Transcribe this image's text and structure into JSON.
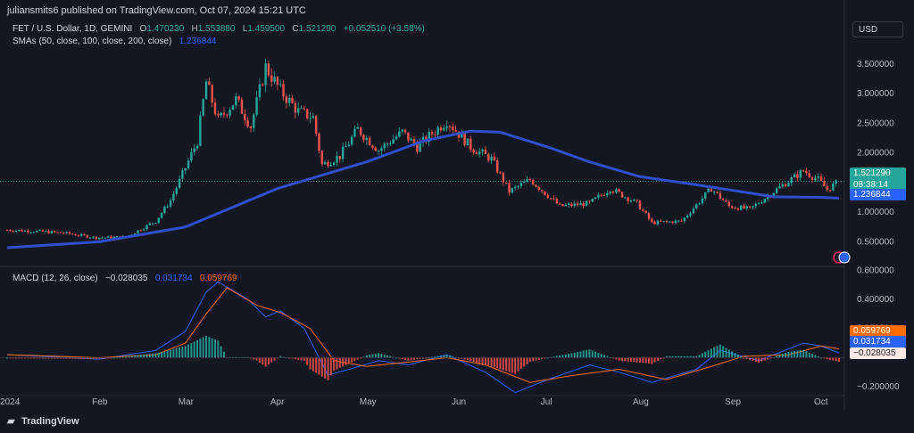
{
  "header": {
    "publisher_line": "juliansmits6 published on TradingView.com, Oct 07, 2024 15:21 UTC"
  },
  "legend": {
    "symbol": "FET / U.S. Dollar, 1D, GEMINI",
    "o_label": "O",
    "o_value": "1.470230",
    "h_label": "H",
    "h_value": "1.553880",
    "l_label": "L",
    "l_value": "1.459500",
    "c_label": "C",
    "c_value": "1.521290",
    "change": "+0.052510 (+3.58%)",
    "sma_label": "SMAs (50, close, 100, close, 200, close)",
    "sma_value": "1.236844",
    "macd_label": "MACD (12, 26, close)",
    "macd_hist": "−0.028035",
    "macd_line": "0.031734",
    "macd_signal": "0.059769"
  },
  "currency_button": "USD",
  "price_tags": {
    "last": "1.521290",
    "countdown": "08:38:14",
    "sma": "1.236844",
    "macd_signal": "0.059769",
    "macd_line": "0.031734",
    "macd_hist": "−0.028035"
  },
  "footer": {
    "brand": "TradingView"
  },
  "colors": {
    "bg": "#131722",
    "up": "#26a69a",
    "down": "#ef5350",
    "sma": "#2e4fc9",
    "macd_line": "#2962ff",
    "signal": "#ff6d00"
  },
  "chart_data": [
    {
      "type": "candlestick",
      "title": "FET / U.S. Dollar, 1D, GEMINI",
      "x_tick_labels": [
        "2024",
        "Feb",
        "Mar",
        "Apr",
        "May",
        "Jun",
        "Jul",
        "Aug",
        "Sep",
        "Oct"
      ],
      "y_tick_labels": [
        "0.500000",
        "1.000000",
        "1.500000",
        "2.000000",
        "2.500000",
        "3.000000",
        "3.500000"
      ],
      "ylim": [
        0.1,
        3.8
      ],
      "close_series": [
        {
          "date": "2024-01-01",
          "close": 0.7
        },
        {
          "date": "2024-01-10",
          "close": 0.68
        },
        {
          "date": "2024-01-20",
          "close": 0.65
        },
        {
          "date": "2024-01-31",
          "close": 0.57
        },
        {
          "date": "2024-02-10",
          "close": 0.58
        },
        {
          "date": "2024-02-20",
          "close": 0.85
        },
        {
          "date": "2024-02-25",
          "close": 1.2
        },
        {
          "date": "2024-03-01",
          "close": 1.75
        },
        {
          "date": "2024-03-05",
          "close": 2.2
        },
        {
          "date": "2024-03-08",
          "close": 3.2
        },
        {
          "date": "2024-03-12",
          "close": 2.55
        },
        {
          "date": "2024-03-18",
          "close": 2.9
        },
        {
          "date": "2024-03-23",
          "close": 2.45
        },
        {
          "date": "2024-03-28",
          "close": 3.45
        },
        {
          "date": "2024-04-02",
          "close": 3.05
        },
        {
          "date": "2024-04-08",
          "close": 2.7
        },
        {
          "date": "2024-04-13",
          "close": 2.6
        },
        {
          "date": "2024-04-16",
          "close": 1.8
        },
        {
          "date": "2024-04-22",
          "close": 1.95
        },
        {
          "date": "2024-04-28",
          "close": 2.4
        },
        {
          "date": "2024-05-05",
          "close": 2.05
        },
        {
          "date": "2024-05-13",
          "close": 2.35
        },
        {
          "date": "2024-05-18",
          "close": 2.1
        },
        {
          "date": "2024-05-28",
          "close": 2.55
        },
        {
          "date": "2024-06-05",
          "close": 2.1
        },
        {
          "date": "2024-06-12",
          "close": 1.9
        },
        {
          "date": "2024-06-18",
          "close": 1.35
        },
        {
          "date": "2024-06-25",
          "close": 1.55
        },
        {
          "date": "2024-07-05",
          "close": 1.1
        },
        {
          "date": "2024-07-15",
          "close": 1.15
        },
        {
          "date": "2024-07-22",
          "close": 1.4
        },
        {
          "date": "2024-07-31",
          "close": 1.15
        },
        {
          "date": "2024-08-05",
          "close": 0.82
        },
        {
          "date": "2024-08-15",
          "close": 0.85
        },
        {
          "date": "2024-08-25",
          "close": 1.4
        },
        {
          "date": "2024-08-31",
          "close": 1.1
        },
        {
          "date": "2024-09-07",
          "close": 1.05
        },
        {
          "date": "2024-09-15",
          "close": 1.35
        },
        {
          "date": "2024-09-25",
          "close": 1.7
        },
        {
          "date": "2024-09-30",
          "close": 1.55
        },
        {
          "date": "2024-10-03",
          "close": 1.38
        },
        {
          "date": "2024-10-07",
          "close": 1.52
        }
      ],
      "sma_series": [
        {
          "date": "2024-01-01",
          "value": 0.4
        },
        {
          "date": "2024-02-01",
          "value": 0.5
        },
        {
          "date": "2024-03-01",
          "value": 0.75
        },
        {
          "date": "2024-04-01",
          "value": 1.4
        },
        {
          "date": "2024-05-01",
          "value": 1.85
        },
        {
          "date": "2024-05-20",
          "value": 2.2
        },
        {
          "date": "2024-06-05",
          "value": 2.37
        },
        {
          "date": "2024-06-15",
          "value": 2.35
        },
        {
          "date": "2024-07-01",
          "value": 2.1
        },
        {
          "date": "2024-07-15",
          "value": 1.85
        },
        {
          "date": "2024-08-01",
          "value": 1.6
        },
        {
          "date": "2024-08-15",
          "value": 1.5
        },
        {
          "date": "2024-09-01",
          "value": 1.37
        },
        {
          "date": "2024-09-15",
          "value": 1.26
        },
        {
          "date": "2024-10-01",
          "value": 1.25
        },
        {
          "date": "2024-10-07",
          "value": 1.236844
        }
      ]
    },
    {
      "type": "line",
      "title": "MACD (12, 26, close)",
      "y_tick_labels": [
        "−0.200000",
        "0.200000",
        "0.400000",
        "0.600000"
      ],
      "ylim": [
        -0.26,
        0.62
      ],
      "series": [
        {
          "name": "MACD",
          "points": [
            {
              "date": "2024-01-01",
              "value": 0.02
            },
            {
              "date": "2024-02-01",
              "value": -0.01
            },
            {
              "date": "2024-02-20",
              "value": 0.05
            },
            {
              "date": "2024-03-01",
              "value": 0.18
            },
            {
              "date": "2024-03-08",
              "value": 0.45
            },
            {
              "date": "2024-03-12",
              "value": 0.52
            },
            {
              "date": "2024-03-22",
              "value": 0.4
            },
            {
              "date": "2024-03-28",
              "value": 0.28
            },
            {
              "date": "2024-04-02",
              "value": 0.32
            },
            {
              "date": "2024-04-10",
              "value": 0.2
            },
            {
              "date": "2024-04-18",
              "value": -0.12
            },
            {
              "date": "2024-04-25",
              "value": -0.08
            },
            {
              "date": "2024-05-05",
              "value": -0.02
            },
            {
              "date": "2024-05-15",
              "value": -0.05
            },
            {
              "date": "2024-05-28",
              "value": 0.02
            },
            {
              "date": "2024-06-10",
              "value": -0.1
            },
            {
              "date": "2024-06-20",
              "value": -0.24
            },
            {
              "date": "2024-07-01",
              "value": -0.15
            },
            {
              "date": "2024-07-15",
              "value": -0.05
            },
            {
              "date": "2024-07-25",
              "value": -0.1
            },
            {
              "date": "2024-08-05",
              "value": -0.17
            },
            {
              "date": "2024-08-20",
              "value": -0.08
            },
            {
              "date": "2024-08-28",
              "value": 0.05
            },
            {
              "date": "2024-09-10",
              "value": -0.02
            },
            {
              "date": "2024-09-25",
              "value": 0.1
            },
            {
              "date": "2024-10-01",
              "value": 0.08
            },
            {
              "date": "2024-10-07",
              "value": 0.031734
            }
          ]
        },
        {
          "name": "Signal",
          "points": [
            {
              "date": "2024-01-01",
              "value": 0.02
            },
            {
              "date": "2024-02-01",
              "value": 0.0
            },
            {
              "date": "2024-02-20",
              "value": 0.02
            },
            {
              "date": "2024-03-01",
              "value": 0.1
            },
            {
              "date": "2024-03-08",
              "value": 0.3
            },
            {
              "date": "2024-03-15",
              "value": 0.48
            },
            {
              "date": "2024-03-25",
              "value": 0.36
            },
            {
              "date": "2024-04-02",
              "value": 0.31
            },
            {
              "date": "2024-04-12",
              "value": 0.2
            },
            {
              "date": "2024-04-20",
              "value": -0.02
            },
            {
              "date": "2024-05-01",
              "value": -0.06
            },
            {
              "date": "2024-05-15",
              "value": -0.03
            },
            {
              "date": "2024-05-28",
              "value": 0.0
            },
            {
              "date": "2024-06-10",
              "value": -0.05
            },
            {
              "date": "2024-06-25",
              "value": -0.17
            },
            {
              "date": "2024-07-10",
              "value": -0.12
            },
            {
              "date": "2024-07-25",
              "value": -0.08
            },
            {
              "date": "2024-08-10",
              "value": -0.15
            },
            {
              "date": "2024-08-25",
              "value": -0.06
            },
            {
              "date": "2024-09-05",
              "value": 0.01
            },
            {
              "date": "2024-09-20",
              "value": 0.02
            },
            {
              "date": "2024-10-01",
              "value": 0.08
            },
            {
              "date": "2024-10-07",
              "value": 0.059769
            }
          ]
        }
      ]
    }
  ]
}
